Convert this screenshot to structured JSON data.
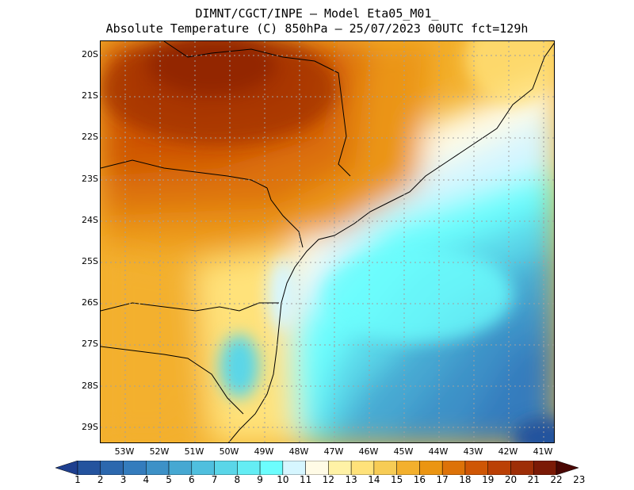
{
  "title_line1": "DIMNT/CGCT/INPE —  Model Eta05_M01_",
  "title_line2": "Absolute Temperature (C) 850hPa —  25/07/2023 00UTC fct=129h",
  "lat_labels": [
    "20S",
    "21S",
    "22S",
    "23S",
    "24S",
    "25S",
    "26S",
    "27S",
    "28S",
    "29S"
  ],
  "lon_labels": [
    "53W",
    "52W",
    "51W",
    "50W",
    "49W",
    "48W",
    "47W",
    "46W",
    "45W",
    "44W",
    "43W",
    "42W",
    "41W"
  ],
  "colorbar": {
    "labels": [
      "1",
      "2",
      "3",
      "4",
      "5",
      "6",
      "7",
      "8",
      "9",
      "10",
      "11",
      "12",
      "13",
      "14",
      "15",
      "16",
      "17",
      "18",
      "19",
      "20",
      "21",
      "22",
      "23"
    ],
    "colors": [
      "#1e3f8f",
      "#24539e",
      "#2c68ae",
      "#347cbd",
      "#3d91c7",
      "#46a8d2",
      "#4fbfde",
      "#5ad6e8",
      "#64edf4",
      "#6cfdfd",
      "#d6f6ff",
      "#fffbe6",
      "#fff2a6",
      "#ffe27a",
      "#f7cc55",
      "#f3b02d",
      "#eb9512",
      "#dd7208",
      "#cf5605",
      "#bb4005",
      "#9e2e07",
      "#7b1a06",
      "#4a0703"
    ]
  },
  "temperature_field": {
    "units": "C",
    "level": "850hPa",
    "lat_range": [
      -29.4,
      -19.8
    ],
    "lon_range": [
      -53.8,
      -40.9
    ],
    "hot_core": {
      "lat": -20.2,
      "lon": -50.5,
      "value": 22
    },
    "cold_core": {
      "lat": -29.3,
      "lon": -41.2,
      "value": 3
    }
  }
}
